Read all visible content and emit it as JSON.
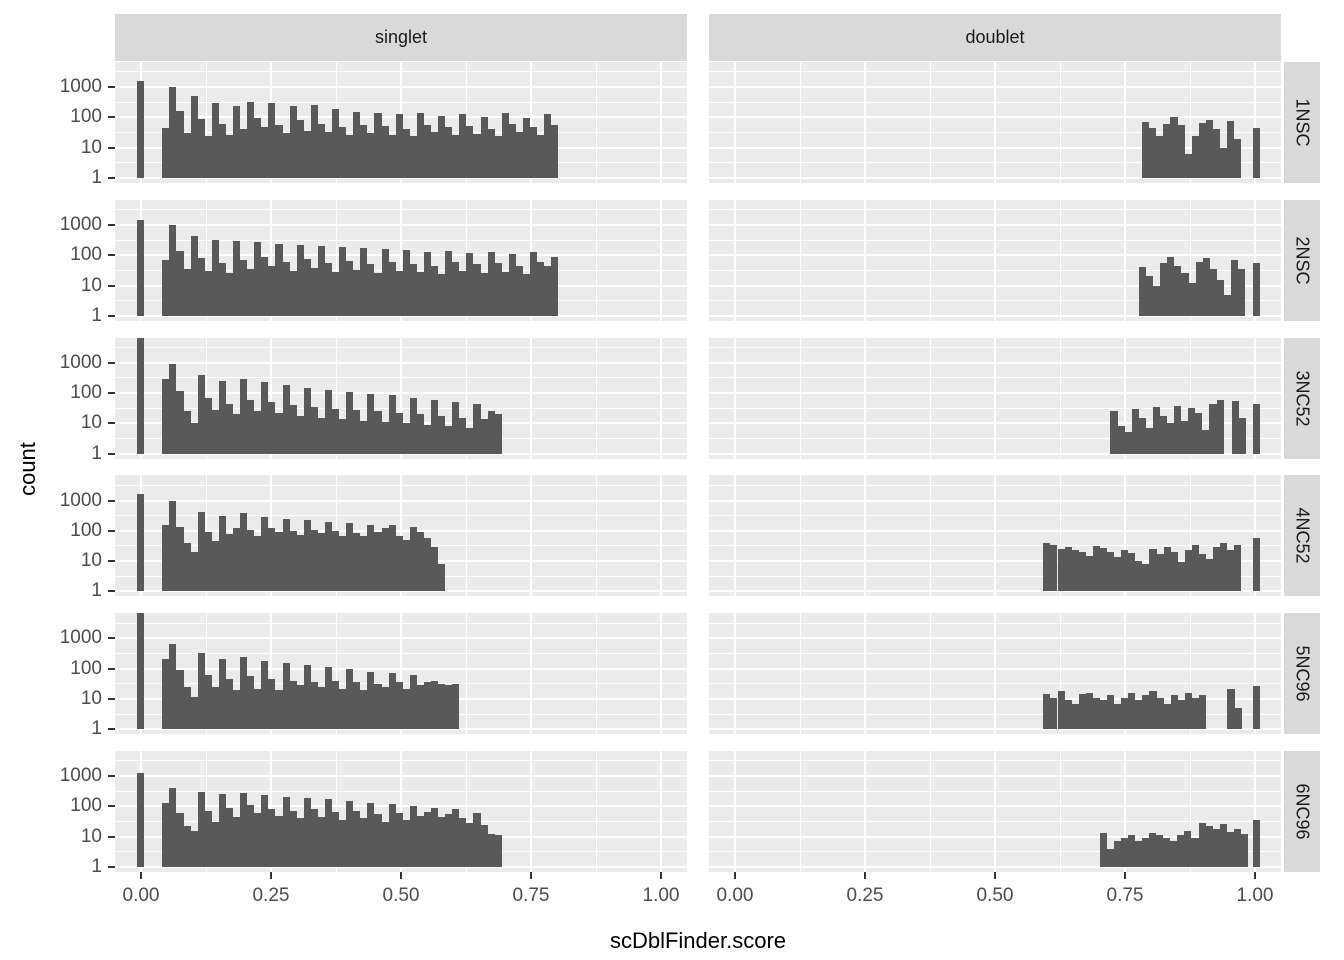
{
  "facets": {
    "cols": [
      {
        "label": "singlet"
      },
      {
        "label": "doublet"
      }
    ],
    "rows": [
      {
        "label": "1NSC"
      },
      {
        "label": "2NSC"
      },
      {
        "label": "3NC52"
      },
      {
        "label": "4NC52"
      },
      {
        "label": "5NC96"
      },
      {
        "label": "6NC96"
      }
    ]
  },
  "axes": {
    "x": {
      "label": "scDblFinder.score",
      "ticks": [
        {
          "value": 0.0,
          "label": "0.00"
        },
        {
          "value": 0.25,
          "label": "0.25"
        },
        {
          "value": 0.5,
          "label": "0.50"
        },
        {
          "value": 0.75,
          "label": "0.75"
        },
        {
          "value": 1.0,
          "label": "1.00"
        }
      ]
    },
    "y": {
      "label": "count",
      "scale": "log10",
      "ticks": [
        {
          "value": 1000,
          "label": "1000"
        },
        {
          "value": 100,
          "label": "100"
        },
        {
          "value": 10,
          "label": "10"
        },
        {
          "value": 1,
          "label": "1"
        }
      ]
    }
  },
  "colors": {
    "bar": "#595959",
    "panel_bg": "#EBEBEB",
    "strip_bg": "#D9D9D9",
    "grid": "#FFFFFF",
    "tick_text": "#4D4D4D",
    "title_text": "#000000"
  },
  "chart_data": {
    "type": "bar",
    "subtype": "faceted histogram",
    "xlabel": "scDblFinder.score",
    "ylabel": "count",
    "y_scale": "log10",
    "x_domain": [
      -0.05,
      1.05
    ],
    "y_log_domain": [
      -0.165,
      3.83
    ],
    "binwidth": 0.0136,
    "grid": {
      "x_major": [
        0,
        0.25,
        0.5,
        0.75,
        1.0
      ],
      "x_minor": [
        0.125,
        0.375,
        0.625,
        0.875
      ],
      "y_major_log": [
        0,
        1,
        2,
        3
      ],
      "y_minor_log": [
        0.5,
        1.5,
        2.5,
        3.5
      ]
    },
    "panels": [
      {
        "row": "1NSC",
        "col": "singlet",
        "zero_spike": [
          -0.007,
          1600
        ],
        "x0": 0.041,
        "counts": [
          45,
          1050,
          160,
          30,
          500,
          90,
          25,
          290,
          60,
          26,
          240,
          42,
          330,
          95,
          48,
          310,
          58,
          30,
          235,
          85,
          36,
          260,
          62,
          32,
          185,
          48,
          26,
          155,
          58,
          30,
          145,
          52,
          26,
          125,
          42,
          24,
          135,
          56,
          32,
          115,
          48,
          26,
          125,
          52,
          28,
          105,
          42,
          24,
          135,
          62,
          32,
          95,
          48,
          26,
          125,
          58
        ],
        "isolated": []
      },
      {
        "row": "1NSC",
        "col": "doublet",
        "x0": 0.783,
        "counts": [
          70,
          45,
          25,
          60,
          100,
          55,
          6,
          25,
          65,
          85,
          40,
          10,
          75,
          20
        ],
        "isolated": [
          [
            0.996,
            45
          ]
        ]
      },
      {
        "row": "2NSC",
        "col": "singlet",
        "zero_spike": [
          -0.007,
          1500
        ],
        "x0": 0.041,
        "counts": [
          70,
          1000,
          140,
          35,
          420,
          80,
          30,
          320,
          55,
          25,
          290,
          70,
          35,
          270,
          90,
          45,
          240,
          60,
          30,
          220,
          75,
          38,
          200,
          55,
          28,
          180,
          65,
          32,
          170,
          50,
          26,
          155,
          60,
          30,
          145,
          52,
          28,
          130,
          45,
          24,
          140,
          58,
          30,
          120,
          50,
          26,
          130,
          55,
          28,
          110,
          45,
          24,
          125,
          60,
          45,
          90
        ],
        "isolated": []
      },
      {
        "row": "2NSC",
        "col": "doublet",
        "x0": 0.777,
        "counts": [
          40,
          20,
          10,
          55,
          85,
          45,
          25,
          12,
          60,
          80,
          35,
          15,
          5,
          70,
          35
        ],
        "isolated": [
          [
            0.996,
            55
          ]
        ]
      },
      {
        "row": "3NC52",
        "col": "singlet",
        "zero_spike": [
          -0.007,
          6700
        ],
        "x0": 0.041,
        "counts": [
          300,
          900,
          120,
          25,
          10,
          380,
          70,
          28,
          250,
          45,
          20,
          280,
          60,
          25,
          230,
          50,
          22,
          180,
          40,
          18,
          150,
          35,
          15,
          130,
          30,
          14,
          110,
          28,
          12,
          95,
          25,
          11,
          85,
          22,
          10,
          70,
          20,
          9,
          60,
          18,
          8,
          50,
          15,
          7,
          45,
          14,
          25,
          20
        ],
        "isolated": []
      },
      {
        "row": "3NC52",
        "col": "doublet",
        "x0": 0.722,
        "counts": [
          25,
          8,
          5,
          30,
          15,
          7,
          35,
          18,
          10,
          38,
          12,
          32,
          22,
          6,
          45,
          60
        ],
        "isolated": [
          [
            0.955,
            55
          ],
          [
            0.969,
            15
          ],
          [
            0.996,
            45
          ]
        ]
      },
      {
        "row": "4NC52",
        "col": "singlet",
        "zero_spike": [
          -0.007,
          1700
        ],
        "x0": 0.041,
        "counts": [
          160,
          950,
          130,
          40,
          20,
          420,
          90,
          45,
          300,
          80,
          120,
          380,
          110,
          70,
          280,
          120,
          90,
          250,
          100,
          75,
          230,
          110,
          85,
          200,
          95,
          70,
          180,
          85,
          65,
          160,
          90,
          120,
          150,
          70,
          50,
          130,
          90,
          60,
          30,
          8
        ],
        "isolated": []
      },
      {
        "row": "4NC52",
        "col": "doublet",
        "x0": 0.593,
        "counts": [
          40,
          35,
          25,
          30,
          24,
          20,
          15,
          32,
          27,
          20,
          14,
          24,
          18,
          10,
          8,
          25,
          17,
          30,
          20,
          9,
          24,
          33,
          17,
          12,
          30,
          41,
          23,
          35
        ],
        "isolated": [
          [
            0.996,
            60
          ]
        ]
      },
      {
        "row": "5NC96",
        "col": "singlet",
        "zero_spike": [
          -0.007,
          7000
        ],
        "x0": 0.041,
        "counts": [
          200,
          650,
          90,
          25,
          12,
          320,
          60,
          25,
          210,
          45,
          20,
          240,
          55,
          22,
          180,
          45,
          20,
          150,
          40,
          28,
          130,
          35,
          25,
          110,
          40,
          22,
          95,
          35,
          20,
          80,
          30,
          25,
          70,
          35,
          22,
          60,
          28,
          35,
          40,
          30,
          28,
          32
        ],
        "isolated": []
      },
      {
        "row": "5NC96",
        "col": "doublet",
        "x0": 0.593,
        "counts": [
          14,
          11,
          18,
          9,
          7,
          14,
          16,
          11,
          9,
          13,
          7,
          11,
          16,
          9,
          13,
          18,
          11,
          7,
          13,
          9,
          16,
          11,
          13
        ],
        "isolated": [
          [
            0.947,
            22
          ],
          [
            0.961,
            5
          ],
          [
            0.996,
            26
          ]
        ]
      },
      {
        "row": "6NC96",
        "col": "singlet",
        "zero_spike": [
          -0.007,
          1300
        ],
        "x0": 0.041,
        "counts": [
          130,
          420,
          60,
          22,
          15,
          300,
          70,
          30,
          250,
          90,
          45,
          280,
          110,
          60,
          240,
          85,
          50,
          210,
          70,
          40,
          190,
          80,
          45,
          170,
          65,
          35,
          150,
          70,
          40,
          130,
          55,
          30,
          120,
          60,
          35,
          100,
          50,
          65,
          90,
          45,
          55,
          80,
          40,
          28,
          60,
          25,
          12,
          11
        ],
        "isolated": []
      },
      {
        "row": "6NC96",
        "col": "doublet",
        "x0": 0.701,
        "counts": [
          13,
          4,
          7,
          9,
          11,
          7,
          9,
          13,
          11,
          9,
          7,
          11,
          16,
          9,
          28,
          22,
          18,
          26,
          14,
          18,
          12
        ],
        "isolated": [
          [
            0.996,
            35
          ]
        ]
      }
    ]
  }
}
